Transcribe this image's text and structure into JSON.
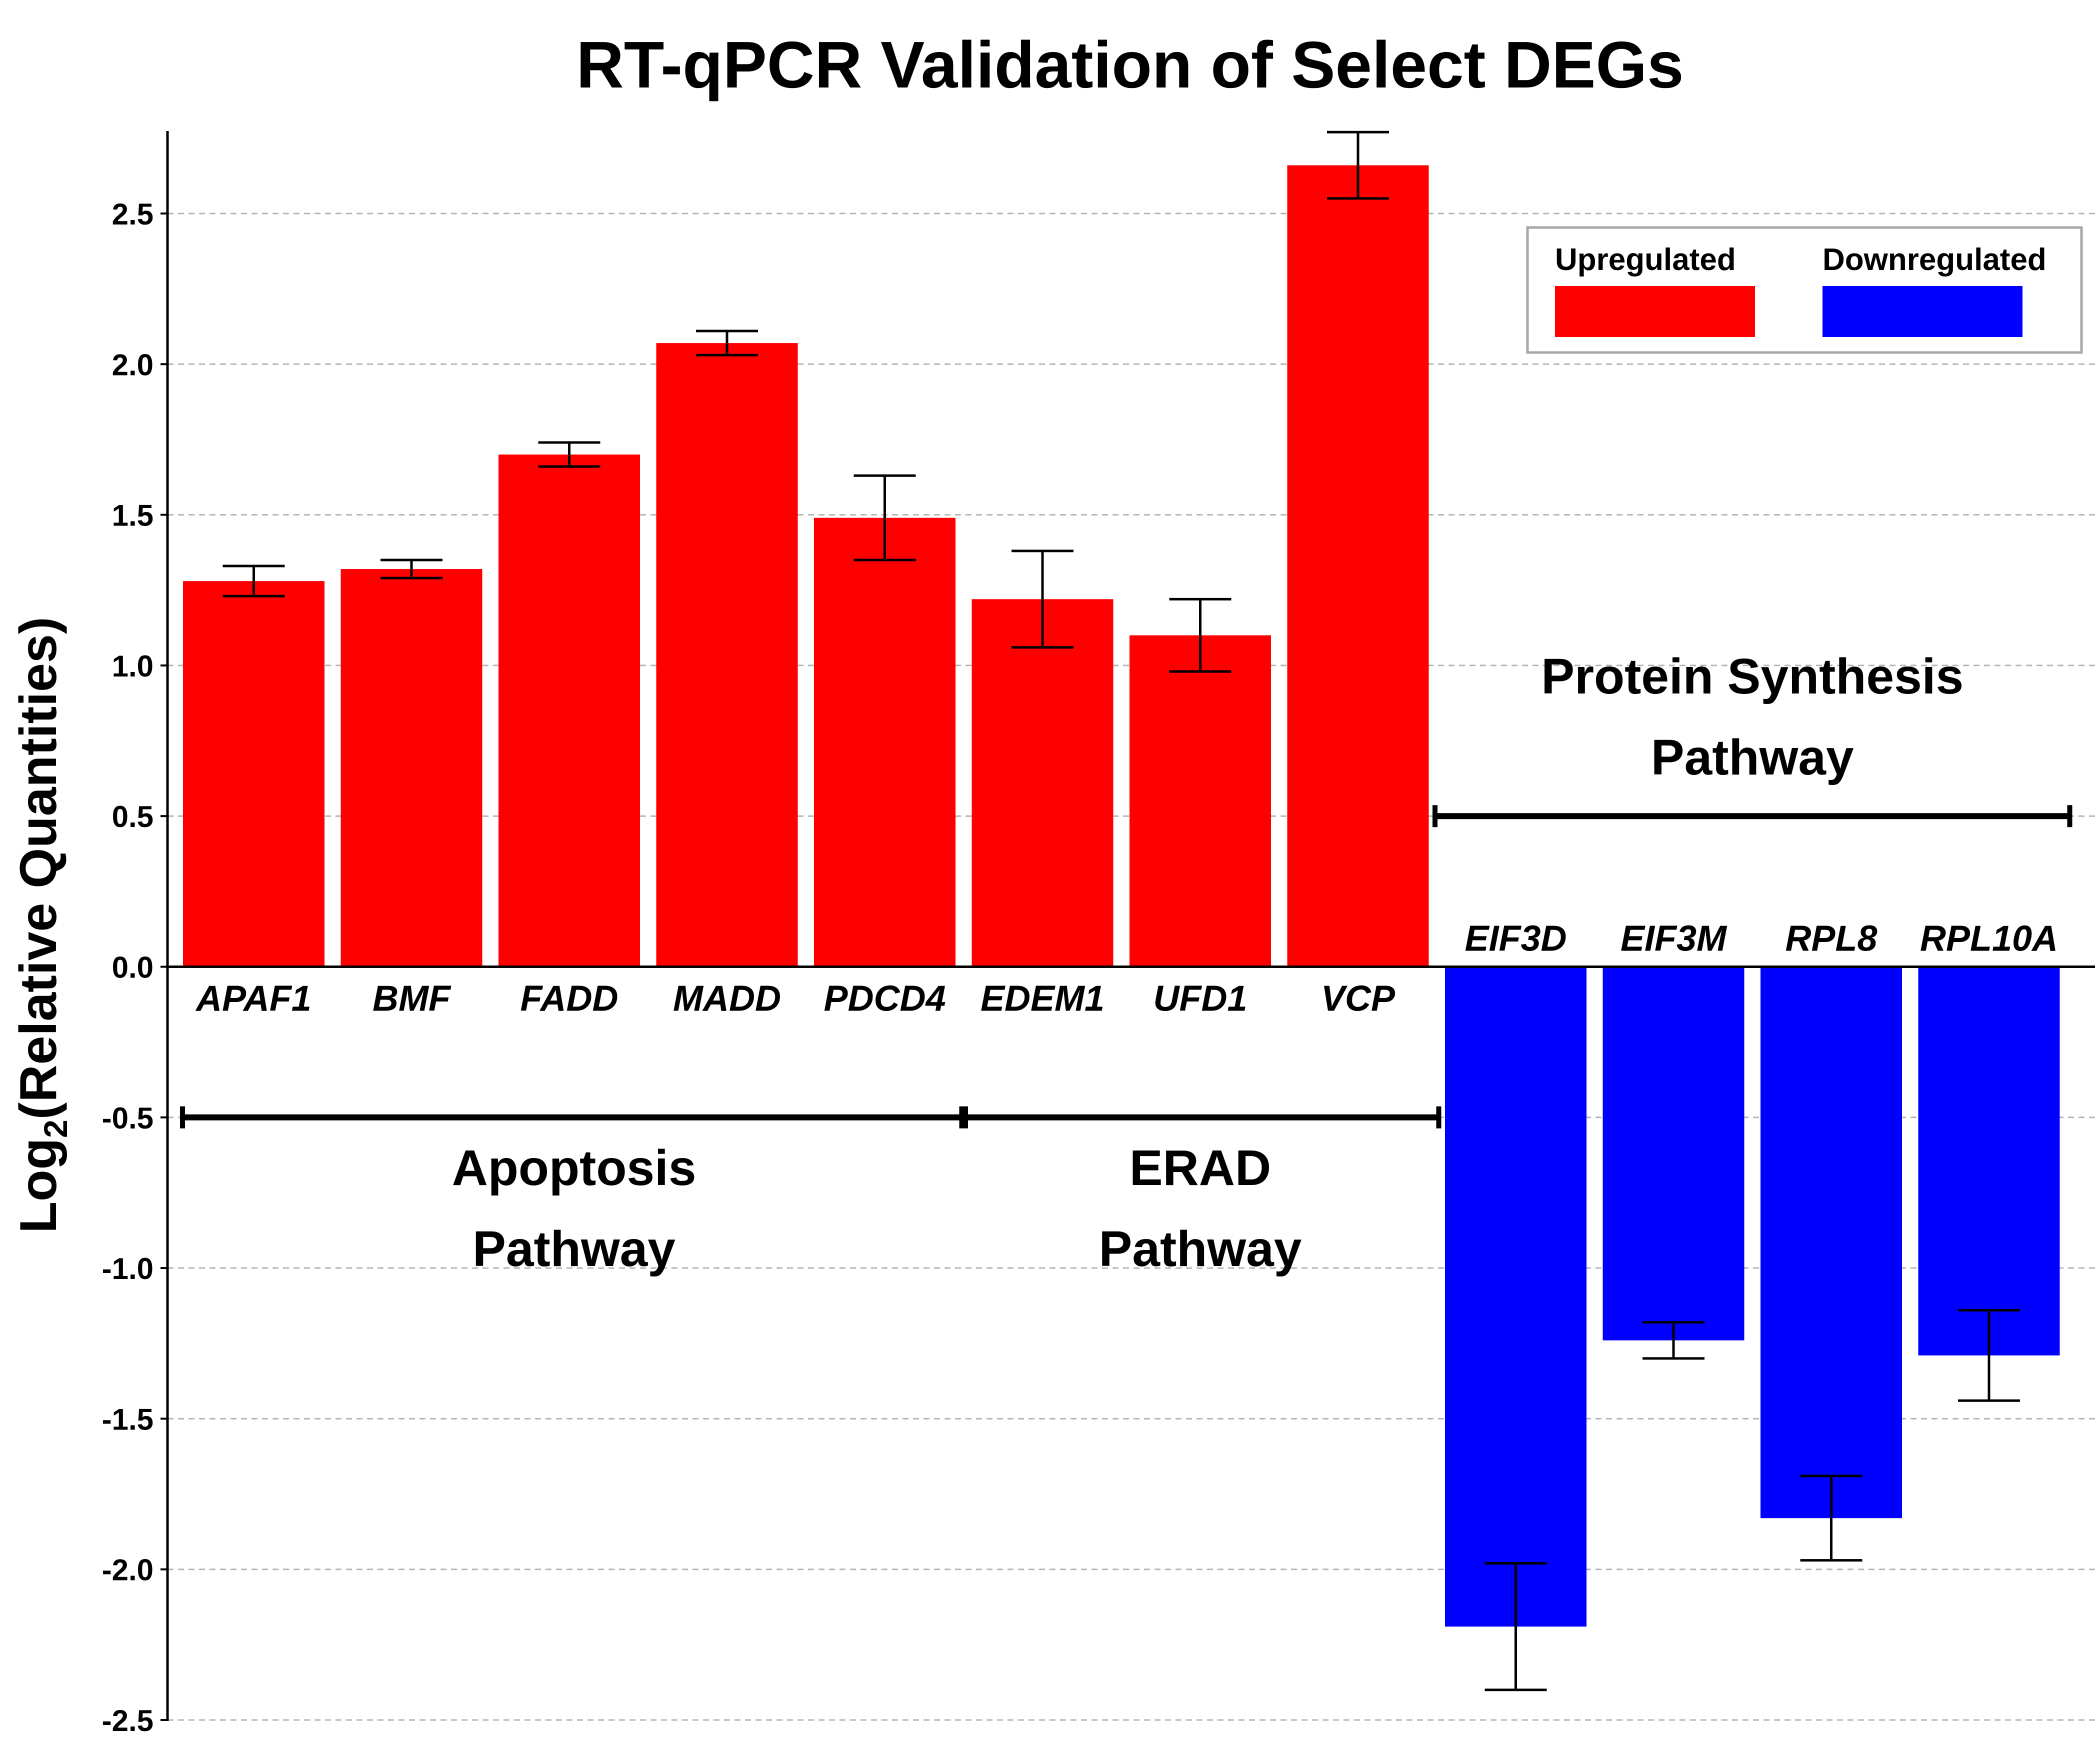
{
  "chart_data": {
    "type": "bar",
    "title": "RT-qPCR Validation of Select DEGs",
    "ylabel": "Log",
    "ylabel_subscript": "2",
    "ylabel_rest": "(Relative Quantities)",
    "xlabel": "",
    "ylim": [
      -2.5,
      2.78
    ],
    "yticks": [
      2.5,
      2.0,
      1.5,
      1.0,
      0.5,
      0.0,
      -0.5,
      -1.0,
      -1.5,
      -2.0,
      -2.5
    ],
    "ytick_labels": [
      "2.5",
      "2.0",
      "1.5",
      "1.0",
      "0.5",
      "0.0",
      "-0.5",
      "-1.0",
      "-1.5",
      "-2.0",
      "-2.5"
    ],
    "grid": true,
    "legend_position": "top-right",
    "colors": {
      "Upregulated": "#ff0000",
      "Downregulated": "#0000ff"
    },
    "categories": [
      "APAF1",
      "BMF",
      "FADD",
      "MADD",
      "PDCD4",
      "EDEM1",
      "UFD1",
      "VCP",
      "EIF3D",
      "EIF3M",
      "RPL8",
      "RPL10A"
    ],
    "series": [
      {
        "name": "Upregulated",
        "values": [
          1.28,
          1.32,
          1.7,
          2.07,
          1.49,
          1.22,
          1.1,
          2.66,
          null,
          null,
          null,
          null
        ],
        "error": [
          0.05,
          0.03,
          0.04,
          0.04,
          0.14,
          0.16,
          0.12,
          0.11,
          null,
          null,
          null,
          null
        ]
      },
      {
        "name": "Downregulated",
        "values": [
          null,
          null,
          null,
          null,
          null,
          null,
          null,
          null,
          -2.19,
          -1.24,
          -1.83,
          -1.29
        ],
        "error": [
          null,
          null,
          null,
          null,
          null,
          null,
          null,
          null,
          0.21,
          0.06,
          0.14,
          0.15
        ]
      }
    ],
    "annotations": [
      {
        "line1": "Apoptosis",
        "line2": "Pathway",
        "from_category": "APAF1",
        "to_category": "PDCD4",
        "bracket_y": -0.5
      },
      {
        "line1": "ERAD",
        "line2": "Pathway",
        "from_category": "EDEM1",
        "to_category": "VCP",
        "bracket_y": -0.5
      },
      {
        "line1": "Protein Synthesis",
        "line2": "Pathway",
        "from_category": "EIF3D",
        "to_category": "RPL10A",
        "bracket_y": 0.5
      }
    ]
  }
}
